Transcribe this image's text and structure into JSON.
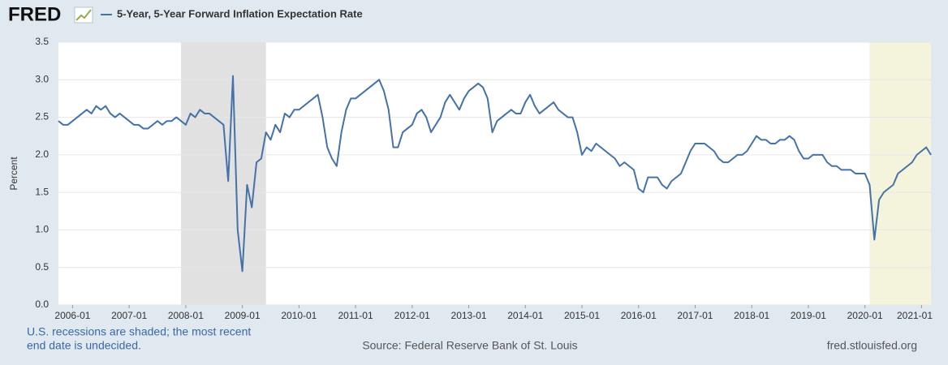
{
  "brand": "FRED",
  "chart_data": {
    "type": "line",
    "y_label": "Percent",
    "note_lines": [
      "U.S. recessions are shaded; the most recent",
      "end date is undecided."
    ],
    "source": "Source: Federal Reserve Bank of St. Louis",
    "site": "fred.stlouisfed.org",
    "recessions": [
      {
        "start": "2007-12",
        "end": "2009-06",
        "color": "#e1e1e1"
      },
      {
        "start": "2020-02",
        "end": "2021-03",
        "color": "#f4f4dc"
      }
    ],
    "xlim": [
      "2005-10",
      "2021-03"
    ],
    "xticks": [
      "2006-01",
      "2007-01",
      "2008-01",
      "2009-01",
      "2010-01",
      "2011-01",
      "2012-01",
      "2013-01",
      "2014-01",
      "2015-01",
      "2016-01",
      "2017-01",
      "2018-01",
      "2019-01",
      "2020-01",
      "2021-01"
    ],
    "ylim": [
      0,
      3.5
    ],
    "yticks": [
      {
        "value": 0,
        "label": "0.0"
      },
      0.5,
      {
        "value": 1,
        "label": "1.0"
      },
      1.5,
      {
        "value": 2,
        "label": "2.0"
      },
      2.5,
      {
        "value": 3,
        "label": "3.0"
      },
      3.5
    ],
    "grid": true,
    "x": [
      "2005-10",
      "2005-11",
      "2005-12",
      "2006-01",
      "2006-02",
      "2006-03",
      "2006-04",
      "2006-05",
      "2006-06",
      "2006-07",
      "2006-08",
      "2006-09",
      "2006-10",
      "2006-11",
      "2006-12",
      "2007-01",
      "2007-02",
      "2007-03",
      "2007-04",
      "2007-05",
      "2007-06",
      "2007-07",
      "2007-08",
      "2007-09",
      "2007-10",
      "2007-11",
      "2007-12",
      "2008-01",
      "2008-02",
      "2008-03",
      "2008-04",
      "2008-05",
      "2008-06",
      "2008-07",
      "2008-08",
      "2008-09",
      "2008-10",
      "2008-11",
      "2008-12",
      "2009-01",
      "2009-02",
      "2009-03",
      "2009-04",
      "2009-05",
      "2009-06",
      "2009-07",
      "2009-08",
      "2009-09",
      "2009-10",
      "2009-11",
      "2009-12",
      "2010-01",
      "2010-02",
      "2010-03",
      "2010-04",
      "2010-05",
      "2010-06",
      "2010-07",
      "2010-08",
      "2010-09",
      "2010-10",
      "2010-11",
      "2010-12",
      "2011-01",
      "2011-02",
      "2011-03",
      "2011-04",
      "2011-05",
      "2011-06",
      "2011-07",
      "2011-08",
      "2011-09",
      "2011-10",
      "2011-11",
      "2011-12",
      "2012-01",
      "2012-02",
      "2012-03",
      "2012-04",
      "2012-05",
      "2012-06",
      "2012-07",
      "2012-08",
      "2012-09",
      "2012-10",
      "2012-11",
      "2012-12",
      "2013-01",
      "2013-02",
      "2013-03",
      "2013-04",
      "2013-05",
      "2013-06",
      "2013-07",
      "2013-08",
      "2013-09",
      "2013-10",
      "2013-11",
      "2013-12",
      "2014-01",
      "2014-02",
      "2014-03",
      "2014-04",
      "2014-05",
      "2014-06",
      "2014-07",
      "2014-08",
      "2014-09",
      "2014-10",
      "2014-11",
      "2014-12",
      "2015-01",
      "2015-02",
      "2015-03",
      "2015-04",
      "2015-05",
      "2015-06",
      "2015-07",
      "2015-08",
      "2015-09",
      "2015-10",
      "2015-11",
      "2015-12",
      "2016-01",
      "2016-02",
      "2016-03",
      "2016-04",
      "2016-05",
      "2016-06",
      "2016-07",
      "2016-08",
      "2016-09",
      "2016-10",
      "2016-11",
      "2016-12",
      "2017-01",
      "2017-02",
      "2017-03",
      "2017-04",
      "2017-05",
      "2017-06",
      "2017-07",
      "2017-08",
      "2017-09",
      "2017-10",
      "2017-11",
      "2017-12",
      "2018-01",
      "2018-02",
      "2018-03",
      "2018-04",
      "2018-05",
      "2018-06",
      "2018-07",
      "2018-08",
      "2018-09",
      "2018-10",
      "2018-11",
      "2018-12",
      "2019-01",
      "2019-02",
      "2019-03",
      "2019-04",
      "2019-05",
      "2019-06",
      "2019-07",
      "2019-08",
      "2019-09",
      "2019-10",
      "2019-11",
      "2019-12",
      "2020-01",
      "2020-02",
      "2020-03",
      "2020-04",
      "2020-05",
      "2020-06",
      "2020-07",
      "2020-08",
      "2020-09",
      "2020-10",
      "2020-11",
      "2020-12",
      "2021-01",
      "2021-02",
      "2021-03"
    ],
    "series": [
      {
        "name": "5-Year, 5-Year Forward Inflation Expectation Rate",
        "color": "#4572a7",
        "values": [
          2.45,
          2.4,
          2.4,
          2.45,
          2.5,
          2.55,
          2.6,
          2.55,
          2.65,
          2.6,
          2.65,
          2.55,
          2.5,
          2.55,
          2.5,
          2.45,
          2.4,
          2.4,
          2.35,
          2.35,
          2.4,
          2.45,
          2.4,
          2.45,
          2.45,
          2.5,
          2.45,
          2.4,
          2.55,
          2.5,
          2.6,
          2.55,
          2.55,
          2.5,
          2.45,
          2.4,
          1.65,
          3.05,
          1.0,
          0.45,
          1.6,
          1.3,
          1.9,
          1.95,
          2.3,
          2.2,
          2.4,
          2.3,
          2.55,
          2.5,
          2.6,
          2.6,
          2.65,
          2.7,
          2.75,
          2.8,
          2.5,
          2.1,
          1.95,
          1.85,
          2.3,
          2.6,
          2.75,
          2.75,
          2.8,
          2.85,
          2.9,
          2.95,
          3.0,
          2.85,
          2.6,
          2.1,
          2.1,
          2.3,
          2.35,
          2.4,
          2.55,
          2.6,
          2.5,
          2.3,
          2.4,
          2.5,
          2.7,
          2.8,
          2.7,
          2.6,
          2.75,
          2.85,
          2.9,
          2.95,
          2.9,
          2.75,
          2.3,
          2.45,
          2.5,
          2.55,
          2.6,
          2.55,
          2.55,
          2.7,
          2.8,
          2.65,
          2.55,
          2.6,
          2.65,
          2.7,
          2.6,
          2.55,
          2.5,
          2.5,
          2.3,
          2.0,
          2.1,
          2.05,
          2.15,
          2.1,
          2.05,
          2.0,
          1.95,
          1.85,
          1.9,
          1.85,
          1.8,
          1.55,
          1.5,
          1.7,
          1.7,
          1.7,
          1.6,
          1.55,
          1.65,
          1.7,
          1.75,
          1.9,
          2.05,
          2.15,
          2.15,
          2.15,
          2.1,
          2.05,
          1.95,
          1.9,
          1.9,
          1.95,
          2.0,
          2.0,
          2.05,
          2.15,
          2.25,
          2.2,
          2.2,
          2.15,
          2.15,
          2.2,
          2.2,
          2.25,
          2.2,
          2.05,
          1.95,
          1.95,
          2.0,
          2.0,
          2.0,
          1.9,
          1.85,
          1.85,
          1.8,
          1.8,
          1.8,
          1.75,
          1.75,
          1.75,
          1.6,
          0.87,
          1.4,
          1.5,
          1.55,
          1.6,
          1.75,
          1.8,
          1.85,
          1.9,
          2.0,
          2.05,
          2.1,
          2.0
        ]
      }
    ]
  }
}
